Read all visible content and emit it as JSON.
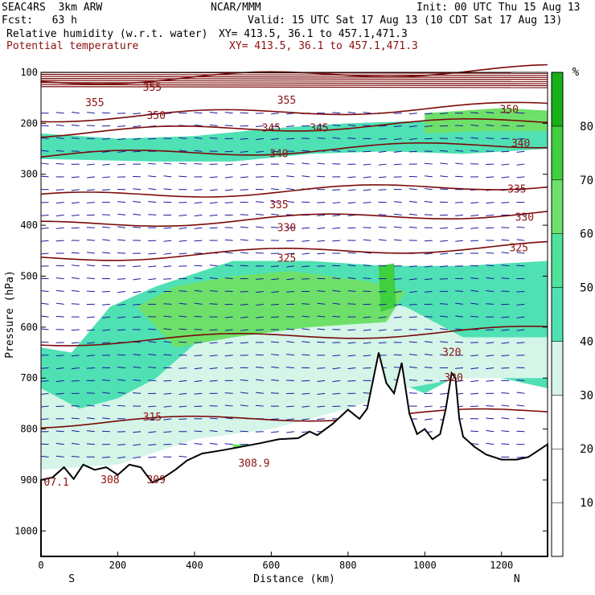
{
  "header": {
    "left1": "SEAC4RS  3km ARW",
    "center1": "NCAR/MMM",
    "right1": "Init: 00 UTC Thu 15 Aug 13",
    "left2": "Fcst:   63 h",
    "right2": "Valid: 15 UTC Sat 17 Aug 13 (10 CDT Sat 17 Aug 13)",
    "left3": "Relative humidity (w.r.t. water)",
    "right3": "XY= 413.5, 36.1 to 457.1,471.3",
    "left4": "Potential temperature",
    "right4": "XY= 413.5, 36.1 to 457.1,471.3"
  },
  "chart_data": {
    "type": "heatmap",
    "xlabel": "Distance (km)",
    "ylabel": "Pressure (hPa)",
    "xlim": [
      0,
      1320
    ],
    "ylim": [
      1050,
      100
    ],
    "x_ticks": [
      "0",
      "200",
      "400",
      "600",
      "800",
      "1000",
      "1200"
    ],
    "y_ticks": [
      "100",
      "200",
      "300",
      "400",
      "500",
      "600",
      "700",
      "800",
      "900",
      "1000"
    ],
    "x_end_labels": {
      "left": "S",
      "right": "N"
    },
    "colorbar": {
      "unit": "%",
      "levels": [
        "10",
        "20",
        "30",
        "40",
        "50",
        "60",
        "70",
        "80"
      ],
      "colors": [
        "#ffffff",
        "#ffffff",
        "#ffffff",
        "#d4f5e8",
        "#4fe0b4",
        "#4fe29a",
        "#6ee06a",
        "#3fcf3f",
        "#18b018"
      ]
    },
    "theta_contours": [
      {
        "label": "355",
        "pressure": 118
      },
      {
        "label": "350",
        "pressure": 190
      },
      {
        "label": "345",
        "pressure": 220
      },
      {
        "label": "340",
        "pressure": 265
      },
      {
        "label": "335",
        "pressure": 345
      },
      {
        "label": "330",
        "pressure": 400
      },
      {
        "label": "325",
        "pressure": 465
      },
      {
        "label": "320",
        "pressure": 630
      },
      {
        "label": "315",
        "pressure": 790
      }
    ],
    "contour_labels": [
      {
        "text": "355",
        "x": 290,
        "p": 130
      },
      {
        "text": "355",
        "x": 140,
        "p": 160
      },
      {
        "text": "355",
        "x": 640,
        "p": 155
      },
      {
        "text": "350",
        "x": 300,
        "p": 185
      },
      {
        "text": "350",
        "x": 1220,
        "p": 173
      },
      {
        "text": "345",
        "x": 600,
        "p": 210
      },
      {
        "text": "345",
        "x": 725,
        "p": 210
      },
      {
        "text": "340",
        "x": 620,
        "p": 260
      },
      {
        "text": "340",
        "x": 1250,
        "p": 240
      },
      {
        "text": "335",
        "x": 620,
        "p": 360
      },
      {
        "text": "335",
        "x": 1240,
        "p": 330
      },
      {
        "text": "330",
        "x": 640,
        "p": 405
      },
      {
        "text": "330",
        "x": 1260,
        "p": 385
      },
      {
        "text": "325",
        "x": 640,
        "p": 465
      },
      {
        "text": "325",
        "x": 1245,
        "p": 445
      },
      {
        "text": "320",
        "x": 1070,
        "p": 650
      },
      {
        "text": "320",
        "x": 1075,
        "p": 700
      },
      {
        "text": "315",
        "x": 290,
        "p": 777
      },
      {
        "text": "309",
        "x": 300,
        "p": 900
      },
      {
        "text": "308",
        "x": 180,
        "p": 900
      },
      {
        "text": "308.9",
        "x": 555,
        "p": 868
      },
      {
        "text": "07.1",
        "x": 40,
        "p": 905
      }
    ],
    "terrain_surface_pressure": [
      [
        0,
        900
      ],
      [
        30,
        895
      ],
      [
        60,
        875
      ],
      [
        85,
        898
      ],
      [
        110,
        870
      ],
      [
        140,
        880
      ],
      [
        170,
        875
      ],
      [
        200,
        890
      ],
      [
        230,
        870
      ],
      [
        260,
        875
      ],
      [
        290,
        905
      ],
      [
        320,
        895
      ],
      [
        350,
        880
      ],
      [
        380,
        862
      ],
      [
        420,
        848
      ],
      [
        470,
        842
      ],
      [
        520,
        835
      ],
      [
        570,
        828
      ],
      [
        620,
        820
      ],
      [
        670,
        818
      ],
      [
        700,
        805
      ],
      [
        720,
        812
      ],
      [
        760,
        790
      ],
      [
        800,
        762
      ],
      [
        830,
        780
      ],
      [
        850,
        760
      ],
      [
        880,
        650
      ],
      [
        900,
        710
      ],
      [
        920,
        730
      ],
      [
        940,
        670
      ],
      [
        960,
        770
      ],
      [
        980,
        810
      ],
      [
        1000,
        800
      ],
      [
        1020,
        820
      ],
      [
        1040,
        810
      ],
      [
        1055,
        760
      ],
      [
        1070,
        690
      ],
      [
        1080,
        700
      ],
      [
        1090,
        780
      ],
      [
        1100,
        815
      ],
      [
        1130,
        835
      ],
      [
        1160,
        850
      ],
      [
        1200,
        860
      ],
      [
        1240,
        860
      ],
      [
        1270,
        855
      ],
      [
        1300,
        840
      ],
      [
        1320,
        830
      ]
    ]
  }
}
